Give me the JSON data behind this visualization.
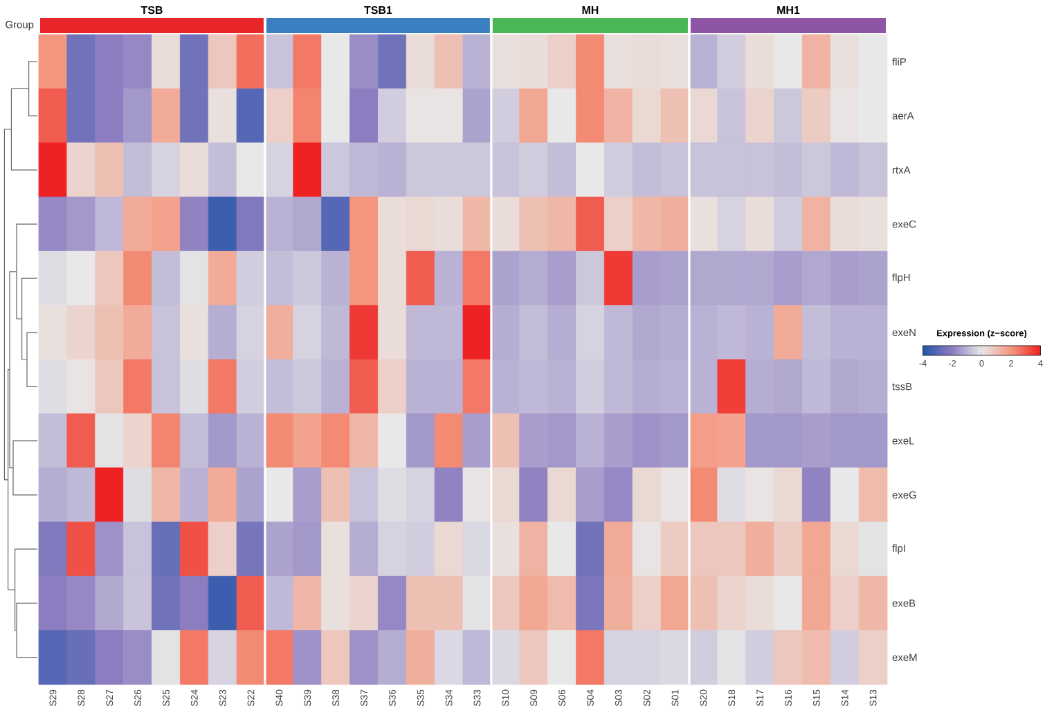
{
  "chart_data": {
    "type": "heatmap",
    "clabel": "Expression (z−score)",
    "categories": [
      "S29",
      "S28",
      "S27",
      "S26",
      "S25",
      "S24",
      "S23",
      "S22",
      "S40",
      "S39",
      "S38",
      "S37",
      "S36",
      "S35",
      "S34",
      "S33",
      "S10",
      "S09",
      "S06",
      "S04",
      "S03",
      "S02",
      "S01",
      "S20",
      "S18",
      "S17",
      "S16",
      "S15",
      "S14",
      "S13"
    ],
    "y_categories": [
      "fliP",
      "aerA",
      "rtxA",
      "exeC",
      "flpH",
      "exeN",
      "tssB",
      "exeL",
      "exeG",
      "flpI",
      "exeB",
      "exeM"
    ],
    "cells": [
      [
        2,
        -2.5,
        -2,
        -1.8,
        0.3,
        -2.5,
        0.8,
        2.7,
        -0.7,
        2.5,
        0,
        -1.7,
        -2.5,
        0.3,
        1,
        -1,
        0.2,
        0.3,
        0.6,
        2.2,
        0.2,
        0.3,
        0.2,
        -1,
        -0.5,
        0.3,
        0,
        1.3,
        0.2,
        0
      ],
      [
        3,
        -2.5,
        -2,
        -1.5,
        1.5,
        -2.5,
        0.2,
        -3,
        0.6,
        2.3,
        0,
        -2,
        -0.5,
        0.1,
        0.1,
        -1.3,
        -0.5,
        1.6,
        0,
        2.2,
        1.3,
        0.4,
        1,
        0.4,
        -0.7,
        0.5,
        -0.6,
        0.7,
        0.1,
        0
      ],
      [
        4,
        0.5,
        1,
        -0.8,
        -0.4,
        0.3,
        -0.8,
        0,
        -0.4,
        4,
        -0.6,
        -0.9,
        -1,
        -0.6,
        -0.6,
        -0.6,
        -0.7,
        -0.5,
        -0.8,
        0,
        -0.5,
        -0.8,
        -0.7,
        -0.7,
        -0.7,
        -0.7,
        -0.8,
        -0.6,
        -0.9,
        -0.7
      ],
      [
        -1.8,
        -1.5,
        -0.9,
        1.5,
        1.7,
        -1.9,
        -3.5,
        -2.2,
        -1,
        -1.2,
        -3,
        2,
        0.3,
        0.4,
        0.3,
        1.2,
        0.3,
        1,
        1.2,
        3,
        0.6,
        1.2,
        1.4,
        0.2,
        -0.4,
        0.3,
        -0.5,
        1.3,
        0.3,
        0.2
      ],
      [
        -0.2,
        0,
        0.8,
        2.2,
        -0.8,
        -0.1,
        1.5,
        -0.5,
        -0.8,
        -0.6,
        -1,
        2,
        0.3,
        3,
        -1,
        2.5,
        -1.3,
        -1.1,
        -1.4,
        -0.6,
        3.6,
        -1.4,
        -1.3,
        -1.2,
        -1.2,
        -1.2,
        -1.4,
        -1.2,
        -1.4,
        -1.3
      ],
      [
        0.2,
        0.5,
        1,
        1.5,
        -0.7,
        0.2,
        -1.1,
        -0.4,
        1.4,
        -0.4,
        -0.9,
        3.6,
        0.3,
        -0.9,
        -0.9,
        4,
        -1.1,
        -0.8,
        -1.1,
        -0.4,
        -0.9,
        -1.2,
        -1.1,
        -1,
        -0.9,
        -1,
        1.5,
        -0.8,
        -1,
        -1
      ],
      [
        -0.2,
        0.1,
        0.8,
        2.5,
        -0.7,
        -0.2,
        2.5,
        -0.5,
        -0.8,
        -0.6,
        -1,
        3,
        0.6,
        -1,
        -1,
        2.5,
        -1,
        -0.9,
        -1,
        -0.5,
        -0.9,
        -1.1,
        -1,
        -1,
        3.5,
        -1.1,
        -1.2,
        -0.9,
        -1.2,
        -1.1
      ],
      [
        -0.8,
        3,
        -0.1,
        0.5,
        2.3,
        -0.8,
        -1.5,
        -1,
        2.2,
        1.7,
        2.2,
        1.2,
        0,
        -1.5,
        2.2,
        -1.4,
        1,
        -1.4,
        -1.5,
        -1,
        -1.4,
        -1.6,
        -1.5,
        1.8,
        1.7,
        -1.5,
        -1.5,
        -1.4,
        -1.5,
        -1.5
      ],
      [
        -1.1,
        -0.9,
        4,
        -0.2,
        1.2,
        -1,
        1.5,
        -1.3,
        0,
        -1.4,
        1,
        -0.7,
        -0.2,
        -0.4,
        -1.9,
        0.1,
        0.4,
        -1.9,
        0.4,
        -1.4,
        -1.8,
        0.4,
        0.1,
        2.2,
        -0.2,
        0.1,
        0.4,
        -1.9,
        0,
        1.1
      ],
      [
        -2.2,
        3.2,
        -1.6,
        -0.7,
        -2.7,
        3.2,
        0.6,
        -2.4,
        -1.3,
        -1.5,
        0.2,
        -1.1,
        -0.4,
        -0.5,
        0.4,
        -0.3,
        0.2,
        1.3,
        0,
        -2.5,
        1.5,
        0.1,
        0.7,
        0.8,
        0.8,
        1.4,
        0.7,
        1.6,
        0.4,
        -0.1
      ],
      [
        -2,
        -1.8,
        -1.2,
        -0.7,
        -2.5,
        -2,
        -3.5,
        3,
        -0.9,
        1.2,
        0.2,
        0.5,
        -1.8,
        1,
        1,
        -0.1,
        0.8,
        1.6,
        1.1,
        -2.3,
        1.4,
        0.6,
        1.6,
        1,
        0.5,
        0.3,
        0,
        1.6,
        0.6,
        1.2
      ],
      [
        -3,
        -2.7,
        -2,
        -1.7,
        -0.1,
        2.5,
        -0.4,
        2.2,
        2.5,
        -1.6,
        0.8,
        -1.6,
        -1.1,
        1.4,
        -0.3,
        -0.9,
        -0.3,
        0.8,
        0,
        2.5,
        -0.4,
        -0.4,
        -0.3,
        -0.5,
        -0.1,
        -0.5,
        0.8,
        1.1,
        -0.5,
        0.6
      ]
    ],
    "clim": [
      -4,
      4
    ],
    "cticks": [
      -4,
      -2,
      0,
      2,
      4
    ],
    "annotations": [
      "Group",
      "TSB",
      "TSB1",
      "MH",
      "MH1"
    ]
  }
}
